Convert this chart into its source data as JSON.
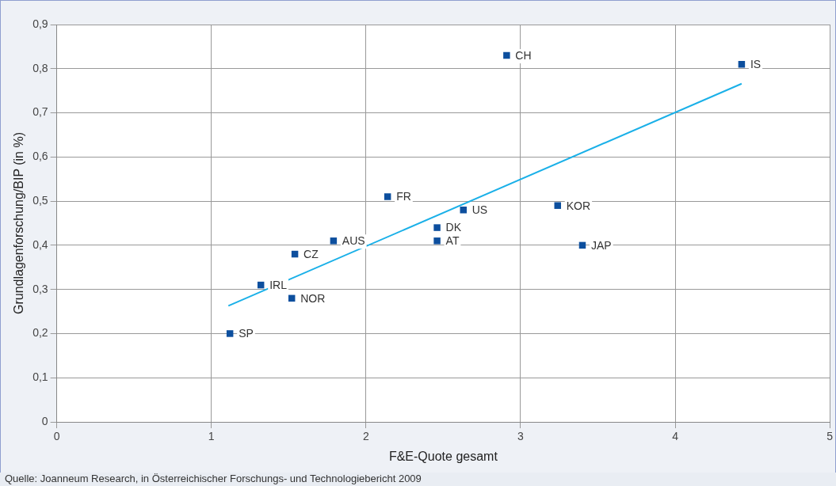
{
  "chart_data": {
    "type": "scatter",
    "xlabel": "F&E-Quote gesamt",
    "ylabel": "Grundlagenforschung/BIP (in %)",
    "xlim": [
      0,
      5
    ],
    "xticks": [
      0,
      1,
      2,
      3,
      4,
      5
    ],
    "ylim": [
      0,
      0.9
    ],
    "yticks": [
      {
        "value": 0,
        "label": "0"
      },
      {
        "value": 0.1,
        "label": "0,1"
      },
      {
        "value": 0.2,
        "label": "0,2"
      },
      {
        "value": 0.3,
        "label": "0,3"
      },
      {
        "value": 0.4,
        "label": "0,4"
      },
      {
        "value": 0.5,
        "label": "0,5"
      },
      {
        "value": 0.6,
        "label": "0,6"
      },
      {
        "value": 0.7,
        "label": "0,7"
      },
      {
        "value": 0.8,
        "label": "0,8"
      },
      {
        "value": 0.9,
        "label": "0,9"
      }
    ],
    "grid": true,
    "legend": false,
    "marker": "square",
    "series": [
      {
        "type": "scatter",
        "color": "#0d4f9e",
        "x": [
          1.12,
          1.32,
          1.52,
          1.54,
          1.79,
          2.14,
          2.46,
          2.46,
          2.63,
          2.91,
          3.24,
          3.4,
          4.43
        ],
        "values": [
          0.2,
          0.31,
          0.28,
          0.38,
          0.41,
          0.51,
          0.44,
          0.41,
          0.48,
          0.83,
          0.49,
          0.4,
          0.81
        ]
      },
      {
        "type": "line",
        "color": "#1ab0e8",
        "marker": "none",
        "x": [
          1.11,
          4.43
        ],
        "values": [
          0.263,
          0.766
        ]
      }
    ],
    "annotations": [
      {
        "text": "SP",
        "x": 1.12,
        "y": 0.2
      },
      {
        "text": "IRL",
        "x": 1.32,
        "y": 0.31
      },
      {
        "text": "NOR",
        "x": 1.52,
        "y": 0.28
      },
      {
        "text": "CZ",
        "x": 1.54,
        "y": 0.38
      },
      {
        "text": "AUS",
        "x": 1.79,
        "y": 0.41
      },
      {
        "text": "FR",
        "x": 2.14,
        "y": 0.51
      },
      {
        "text": "DK",
        "x": 2.46,
        "y": 0.44
      },
      {
        "text": "AT",
        "x": 2.46,
        "y": 0.41
      },
      {
        "text": "US",
        "x": 2.63,
        "y": 0.48
      },
      {
        "text": "CH",
        "x": 2.91,
        "y": 0.83
      },
      {
        "text": "KOR",
        "x": 3.24,
        "y": 0.49
      },
      {
        "text": "JAP",
        "x": 3.4,
        "y": 0.4
      },
      {
        "text": "IS",
        "x": 4.43,
        "y": 0.81
      },
      "Quelle: Joanneum Research, in Österreichischer Forschungs- und Technologiebericht 2009"
    ]
  }
}
